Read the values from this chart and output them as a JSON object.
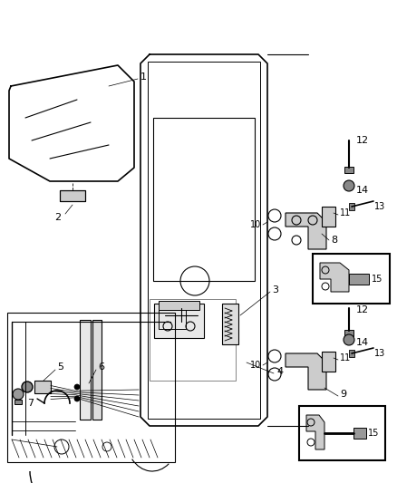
{
  "bg_color": "#ffffff",
  "line_color": "#000000",
  "gray_light": "#cccccc",
  "gray_mid": "#aaaaaa",
  "gray_dark": "#888888"
}
